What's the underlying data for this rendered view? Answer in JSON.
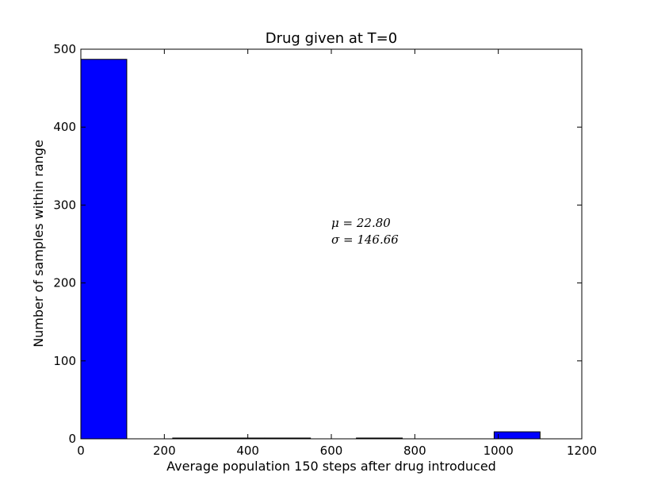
{
  "chart_data": {
    "type": "bar",
    "title": "Drug given at T=0",
    "xlabel": "Average population 150 steps after drug introduced",
    "ylabel": "Number of samples within range",
    "xlim": [
      0,
      1200
    ],
    "ylim": [
      0,
      500
    ],
    "xticks": [
      "0",
      "200",
      "400",
      "600",
      "800",
      "1000",
      "1200"
    ],
    "yticks": [
      "0",
      "100",
      "200",
      "300",
      "400",
      "500"
    ],
    "bins": [
      {
        "x0": 0,
        "x1": 110,
        "value": 487
      },
      {
        "x0": 110,
        "x1": 220,
        "value": 0
      },
      {
        "x0": 220,
        "x1": 330,
        "value": 1
      },
      {
        "x0": 330,
        "x1": 440,
        "value": 1
      },
      {
        "x0": 440,
        "x1": 550,
        "value": 1
      },
      {
        "x0": 550,
        "x1": 660,
        "value": 0
      },
      {
        "x0": 660,
        "x1": 770,
        "value": 1
      },
      {
        "x0": 770,
        "x1": 880,
        "value": 0
      },
      {
        "x0": 880,
        "x1": 990,
        "value": 0
      },
      {
        "x0": 990,
        "x1": 1100,
        "value": 9
      }
    ],
    "annotations": [
      "μ = 22.80",
      "σ = 146.66"
    ],
    "bar_color": "#0000ff",
    "bar_edge_color": "#000000",
    "grid": false,
    "legend": "none"
  }
}
